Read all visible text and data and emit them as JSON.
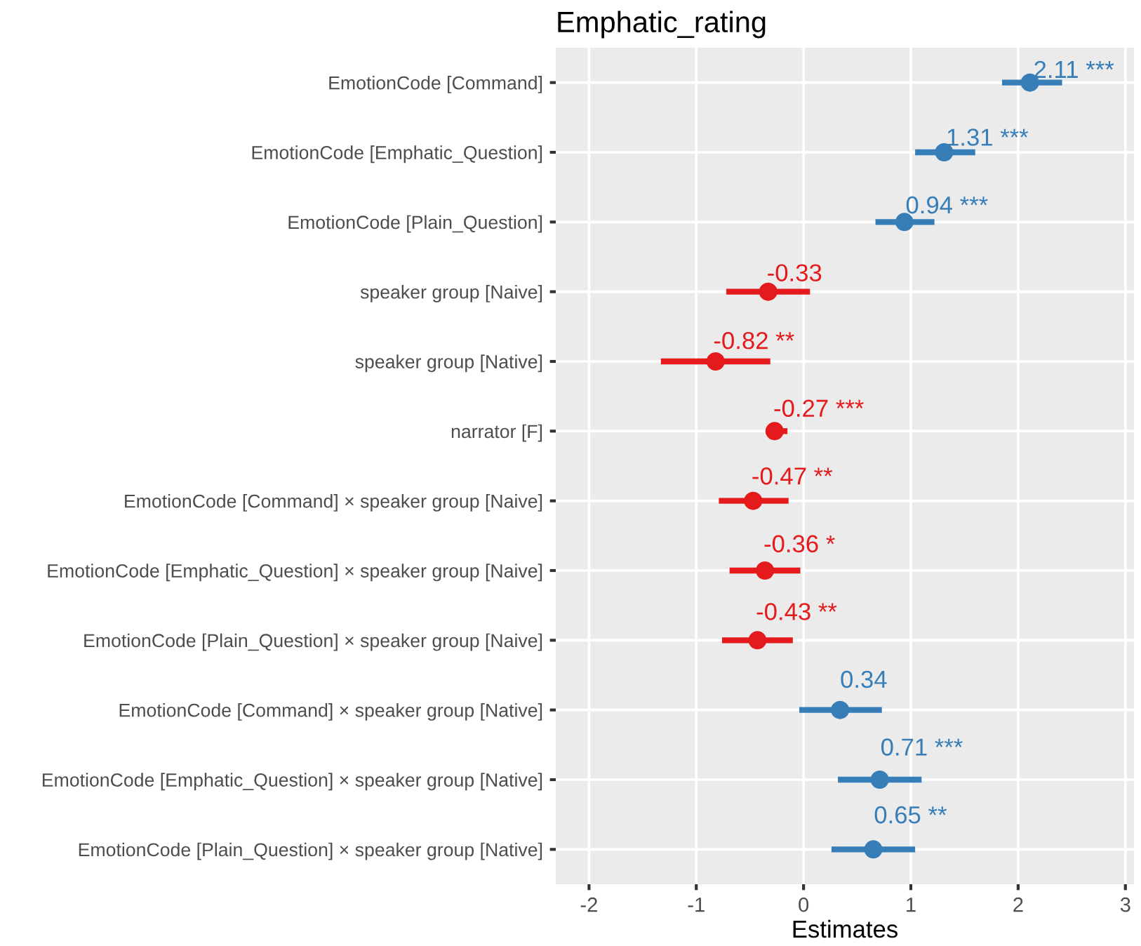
{
  "chart_data": {
    "type": "scatter",
    "orientation": "horizontal",
    "title": "Emphatic_rating",
    "xlabel": "Estimates",
    "categories": [
      "EmotionCode [Command]",
      "EmotionCode [Emphatic_Question]",
      "EmotionCode [Plain_Question]",
      "speaker group [Naive]",
      "speaker group [Native]",
      "narrator [F]",
      "EmotionCode [Command] × speaker group [Naive]",
      "EmotionCode [Emphatic_Question] × speaker group [Naive]",
      "EmotionCode [Plain_Question] × speaker group [Naive]",
      "EmotionCode [Command] × speaker group [Native]",
      "EmotionCode [Emphatic_Question] × speaker group [Native]",
      "EmotionCode [Plain_Question] × speaker group [Native]"
    ],
    "values": [
      2.11,
      1.31,
      0.94,
      -0.33,
      -0.82,
      -0.27,
      -0.47,
      -0.36,
      -0.43,
      0.34,
      0.71,
      0.65
    ],
    "errors": [
      [
        1.85,
        2.41
      ],
      [
        1.04,
        1.6
      ],
      [
        0.67,
        1.22
      ],
      [
        -0.72,
        0.06
      ],
      [
        -1.33,
        -0.31
      ],
      [
        -0.35,
        -0.15
      ],
      [
        -0.79,
        -0.14
      ],
      [
        -0.69,
        -0.03
      ],
      [
        -0.76,
        -0.1
      ],
      [
        -0.04,
        0.73
      ],
      [
        0.32,
        1.1
      ],
      [
        0.26,
        1.04
      ]
    ],
    "value_labels": [
      "2.11 ***",
      "1.31 ***",
      "0.94 ***",
      "-0.33",
      "-0.82 **",
      "-0.27 ***",
      "-0.47 **",
      "-0.36 *",
      "-0.43 **",
      "0.34",
      "0.71 ***",
      "0.65 **"
    ],
    "colors": [
      "#377eb8",
      "#377eb8",
      "#377eb8",
      "#e41a1c",
      "#e41a1c",
      "#e41a1c",
      "#e41a1c",
      "#e41a1c",
      "#e41a1c",
      "#377eb8",
      "#377eb8",
      "#377eb8"
    ],
    "xlim": [
      -2.31,
      3.08
    ],
    "xticks": [
      -2,
      -1,
      0,
      1,
      2,
      3
    ],
    "grid": true,
    "marker": "circle"
  }
}
